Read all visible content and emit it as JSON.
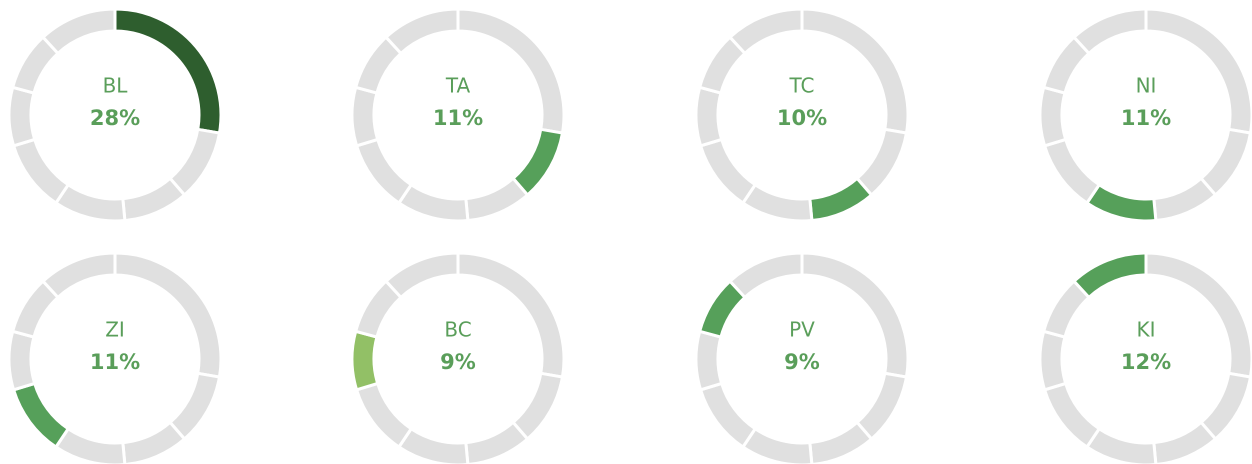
{
  "chart_data": {
    "type": "donut",
    "categories": [
      "BL",
      "TA",
      "TC",
      "NI",
      "ZI",
      "BC",
      "PV",
      "KI"
    ],
    "values": [
      28,
      11,
      10,
      11,
      11,
      9,
      9,
      12
    ],
    "value_labels": [
      "28%",
      "11%",
      "10%",
      "11%",
      "11%",
      "9%",
      "9%",
      "12%"
    ],
    "colors": [
      "#2e5e2e",
      "#56a05a",
      "#56a05a",
      "#56a05a",
      "#56a05a",
      "#92c066",
      "#56a05a",
      "#56a05a"
    ],
    "base_color": "#e0e0e0"
  }
}
